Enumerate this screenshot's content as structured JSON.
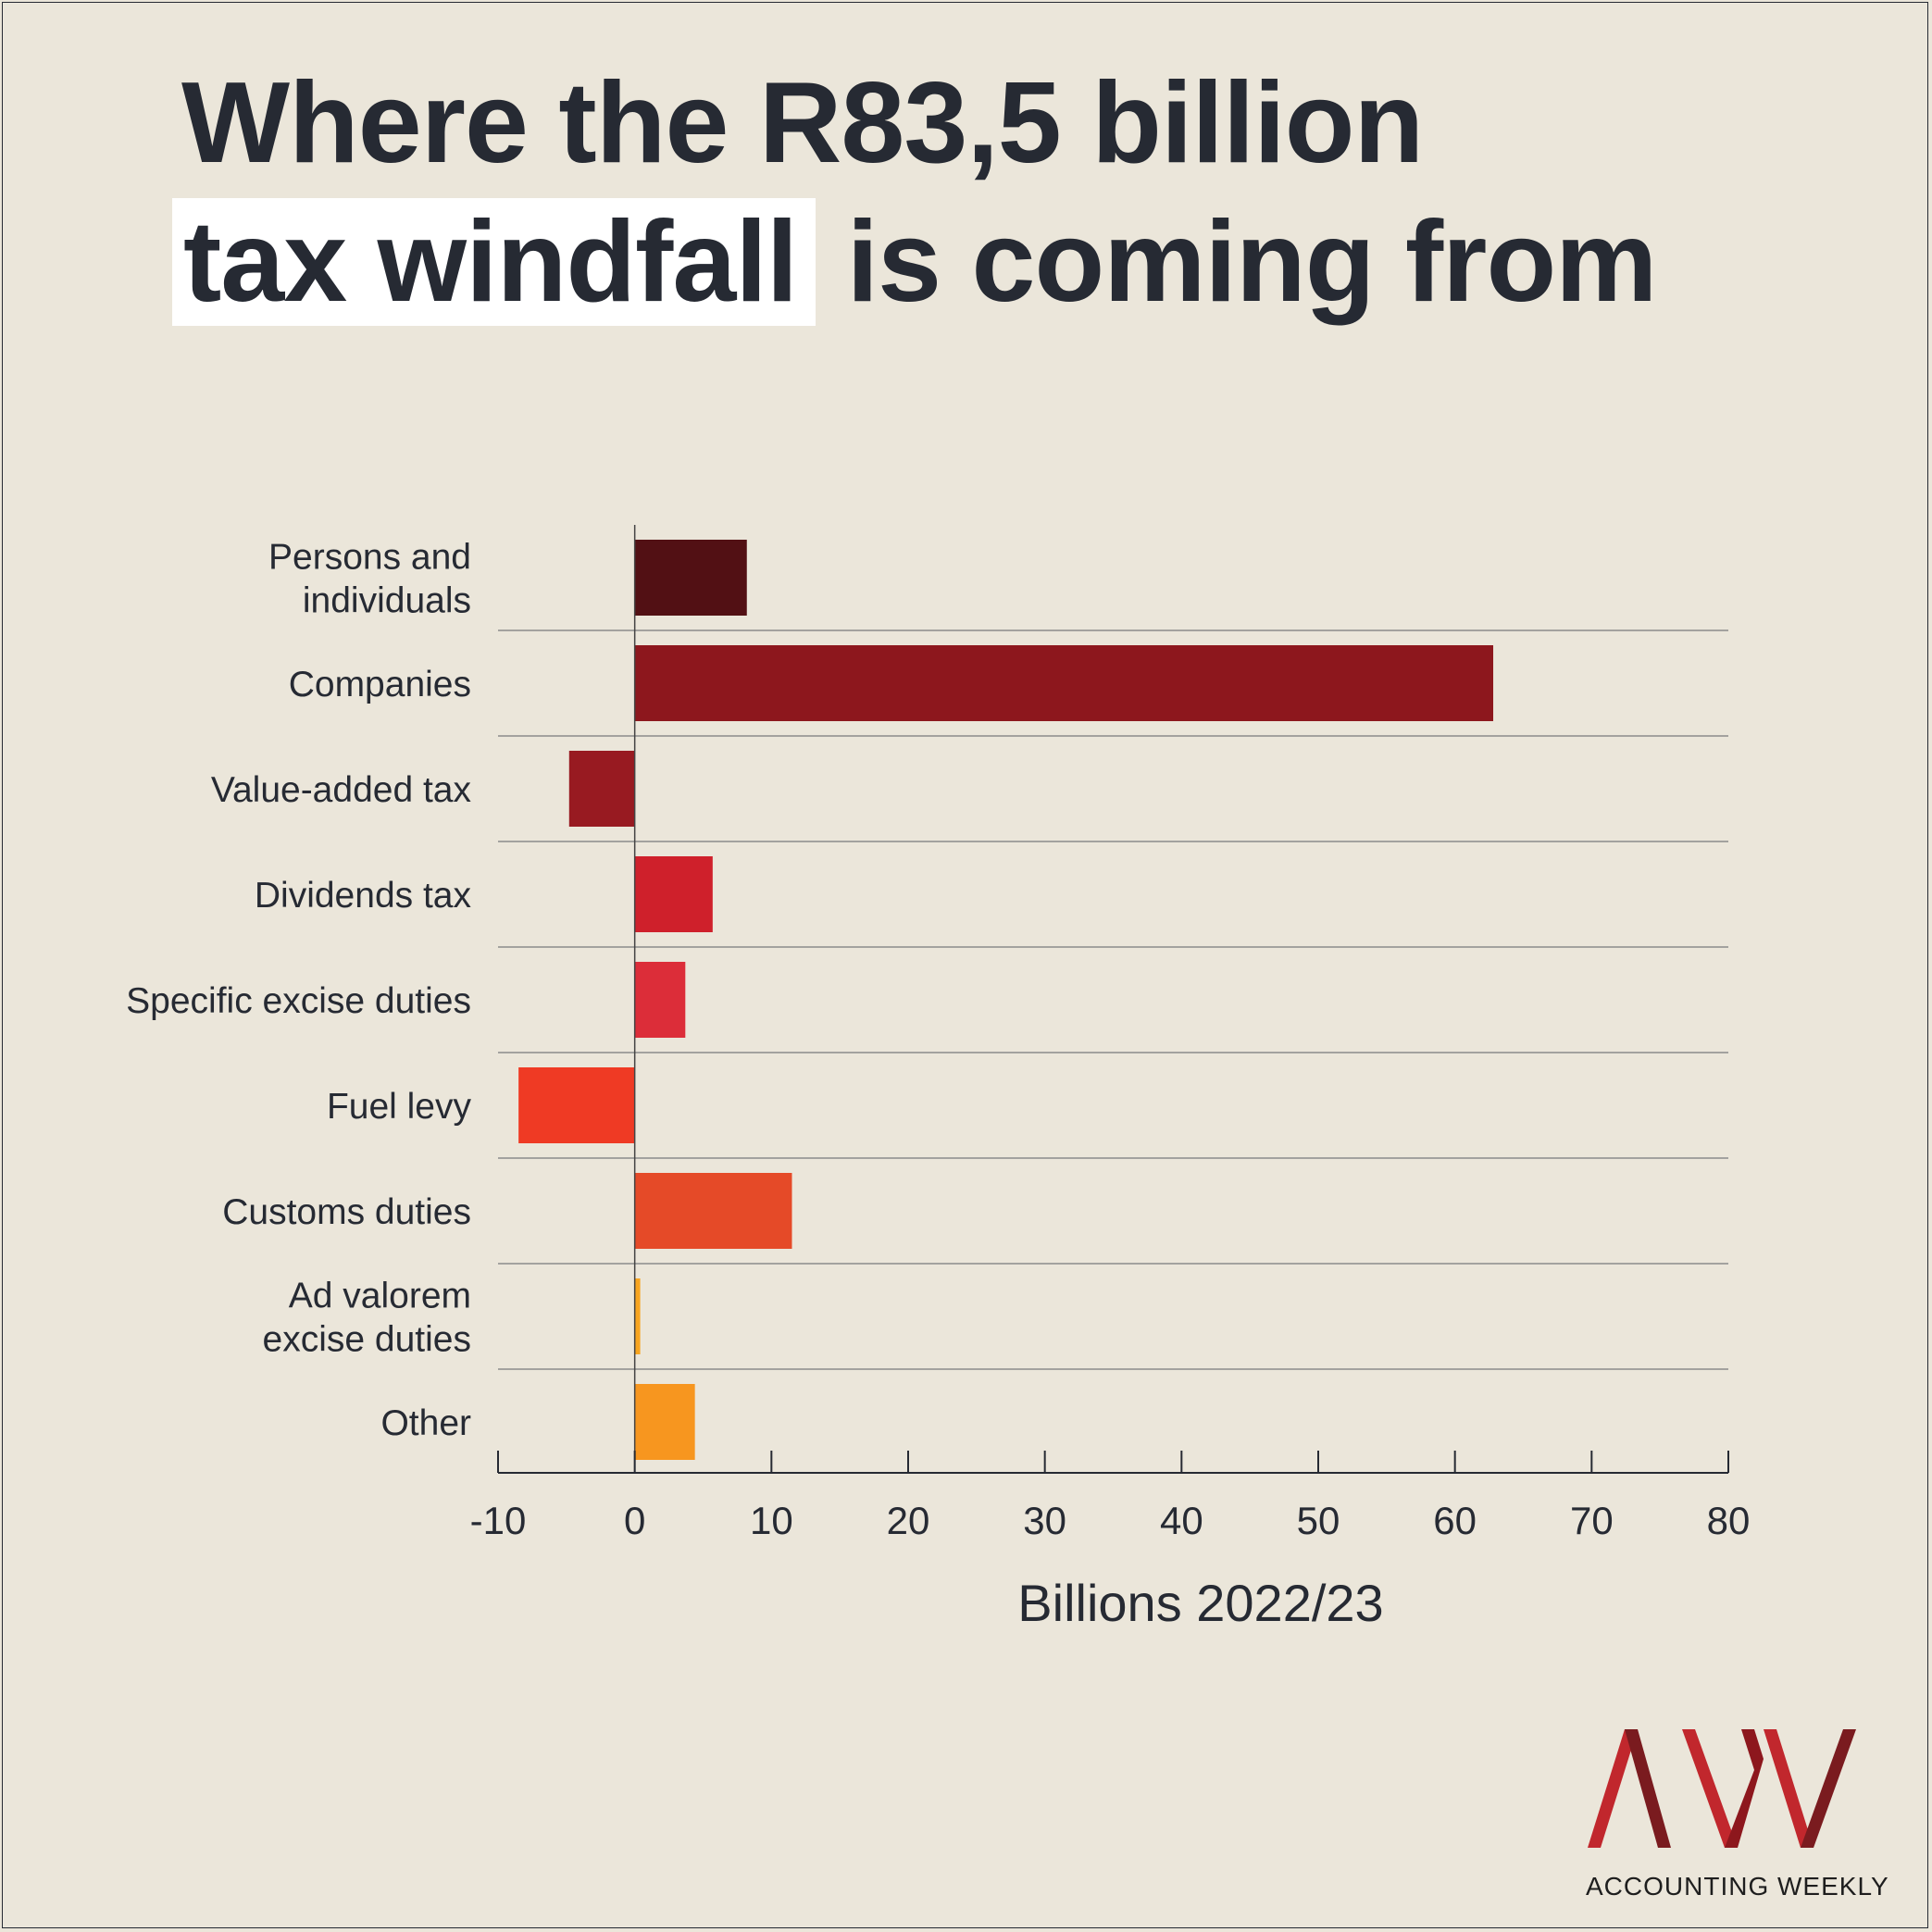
{
  "title": {
    "line1": "Where the R83,5 billion",
    "highlight": "tax windfall",
    "rest": "is coming from"
  },
  "chart_data": {
    "type": "bar",
    "orientation": "horizontal",
    "categories": [
      [
        "Persons and",
        "individuals"
      ],
      [
        "Companies"
      ],
      [
        "Value-added tax"
      ],
      [
        "Dividends tax"
      ],
      [
        "Specific excise duties"
      ],
      [
        "Fuel levy"
      ],
      [
        "Customs duties"
      ],
      [
        "Ad valorem",
        "excise duties"
      ],
      [
        "Other"
      ]
    ],
    "values": [
      8.2,
      62.8,
      -4.8,
      5.7,
      3.7,
      -8.5,
      11.5,
      0.4,
      4.4
    ],
    "colors": [
      "#521014",
      "#8d171d",
      "#981a21",
      "#cf202b",
      "#dc2d39",
      "#ef3a24",
      "#e54a28",
      "#f8a51f",
      "#f7961f"
    ],
    "xlim": [
      -10,
      80
    ],
    "xticks": [
      -10,
      0,
      10,
      20,
      30,
      40,
      50,
      60,
      70,
      80
    ],
    "xlabel": "Billions 2022/23",
    "ylabel": "",
    "grid": "horizontal separators"
  },
  "brand": {
    "name": "ACCOUNTING WEEKLY",
    "logo_icon": "aw-logo-icon",
    "logo_colors": [
      "#c1272d",
      "#7a1b1f"
    ]
  }
}
